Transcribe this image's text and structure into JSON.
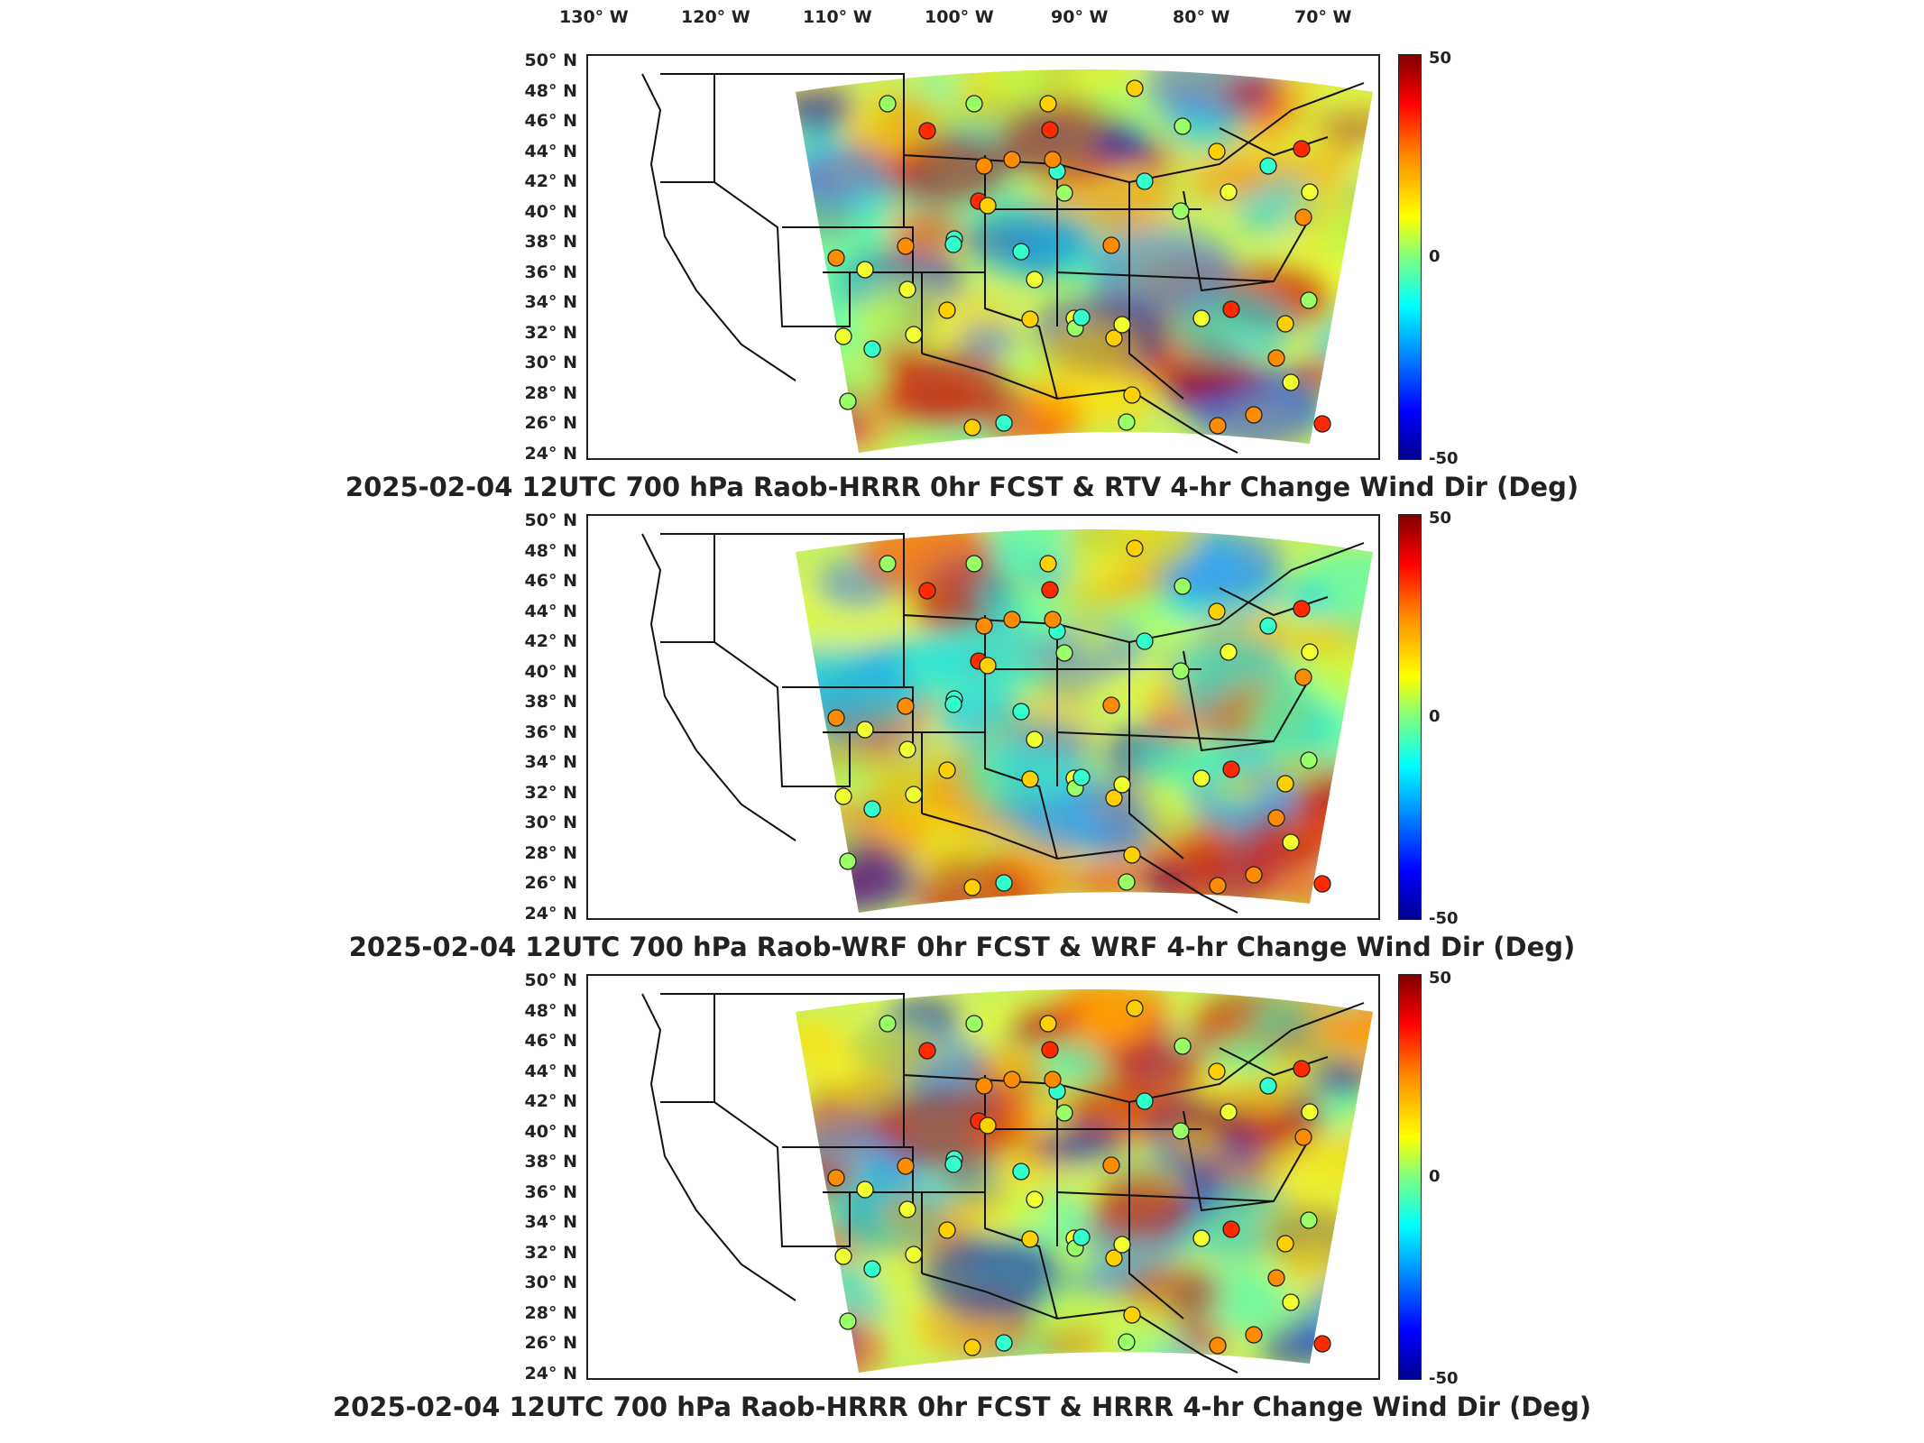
{
  "lon_labels": [
    "130° W",
    "120° W",
    "110° W",
    "100° W",
    "90° W",
    "80° W",
    "70° W"
  ],
  "lat_labels": [
    "50° N",
    "48° N",
    "46° N",
    "44° N",
    "42° N",
    "40° N",
    "38° N",
    "36° N",
    "34° N",
    "32° N",
    "30° N",
    "28° N",
    "26° N",
    "24° N"
  ],
  "colorbar": {
    "max": "50",
    "mid": "0",
    "min": "-50"
  },
  "panels": [
    {
      "title": "2025-02-04 12UTC 700 hPa Raob-HRRR 0hr FCST & RTV 4-hr Change Wind Dir (Deg)"
    },
    {
      "title": "2025-02-04 12UTC 700 hPa Raob-WRF 0hr FCST & WRF 4-hr Change Wind Dir (Deg)"
    },
    {
      "title": "2025-02-04 12UTC 700 hPa Raob-HRRR 0hr FCST & HRRR 4-hr Change Wind Dir (Deg)"
    }
  ]
}
